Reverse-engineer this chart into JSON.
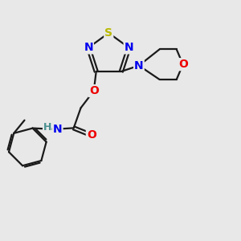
{
  "background_color": "#e8e8e8",
  "bond_color": "#1a1a1a",
  "atom_colors": {
    "S": "#b8b800",
    "N": "#0000ee",
    "O": "#ee0000",
    "H": "#4a9090",
    "C": "#1a1a1a"
  },
  "figsize": [
    3.0,
    3.0
  ],
  "dpi": 100,
  "lw": 1.6,
  "double_sep": 0.07
}
